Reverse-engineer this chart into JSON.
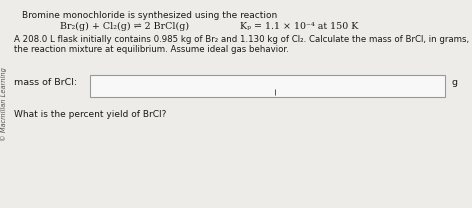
{
  "title_line1": "Bromine monochloride is synthesized using the reaction",
  "reaction_left": "Br₂(g) + Cl₂(g) ⇌ 2 BrCl(g)",
  "reaction_right": "Kₚ = 1.1 × 10⁻⁴ at 150 K",
  "body_line1": "A 208.0 L flask initially contains 0.985 kg of Br₂ and 1.130 kg of Cl₂. Calculate the mass of BrCl, in grams, that is present in",
  "body_line2": "the reaction mixture at equilibrium. Assume ideal gas behavior.",
  "label_mass": "mass of BrCl:",
  "unit": "g",
  "question2": "What is the percent yield of BrCl?",
  "sidebar_text": "© Macmillan Learning",
  "bg_color": "#eeece8",
  "box_color": "#f8f8f8",
  "box_edge_color": "#999999",
  "text_color": "#1a1a1a",
  "sidebar_color": "#555555"
}
